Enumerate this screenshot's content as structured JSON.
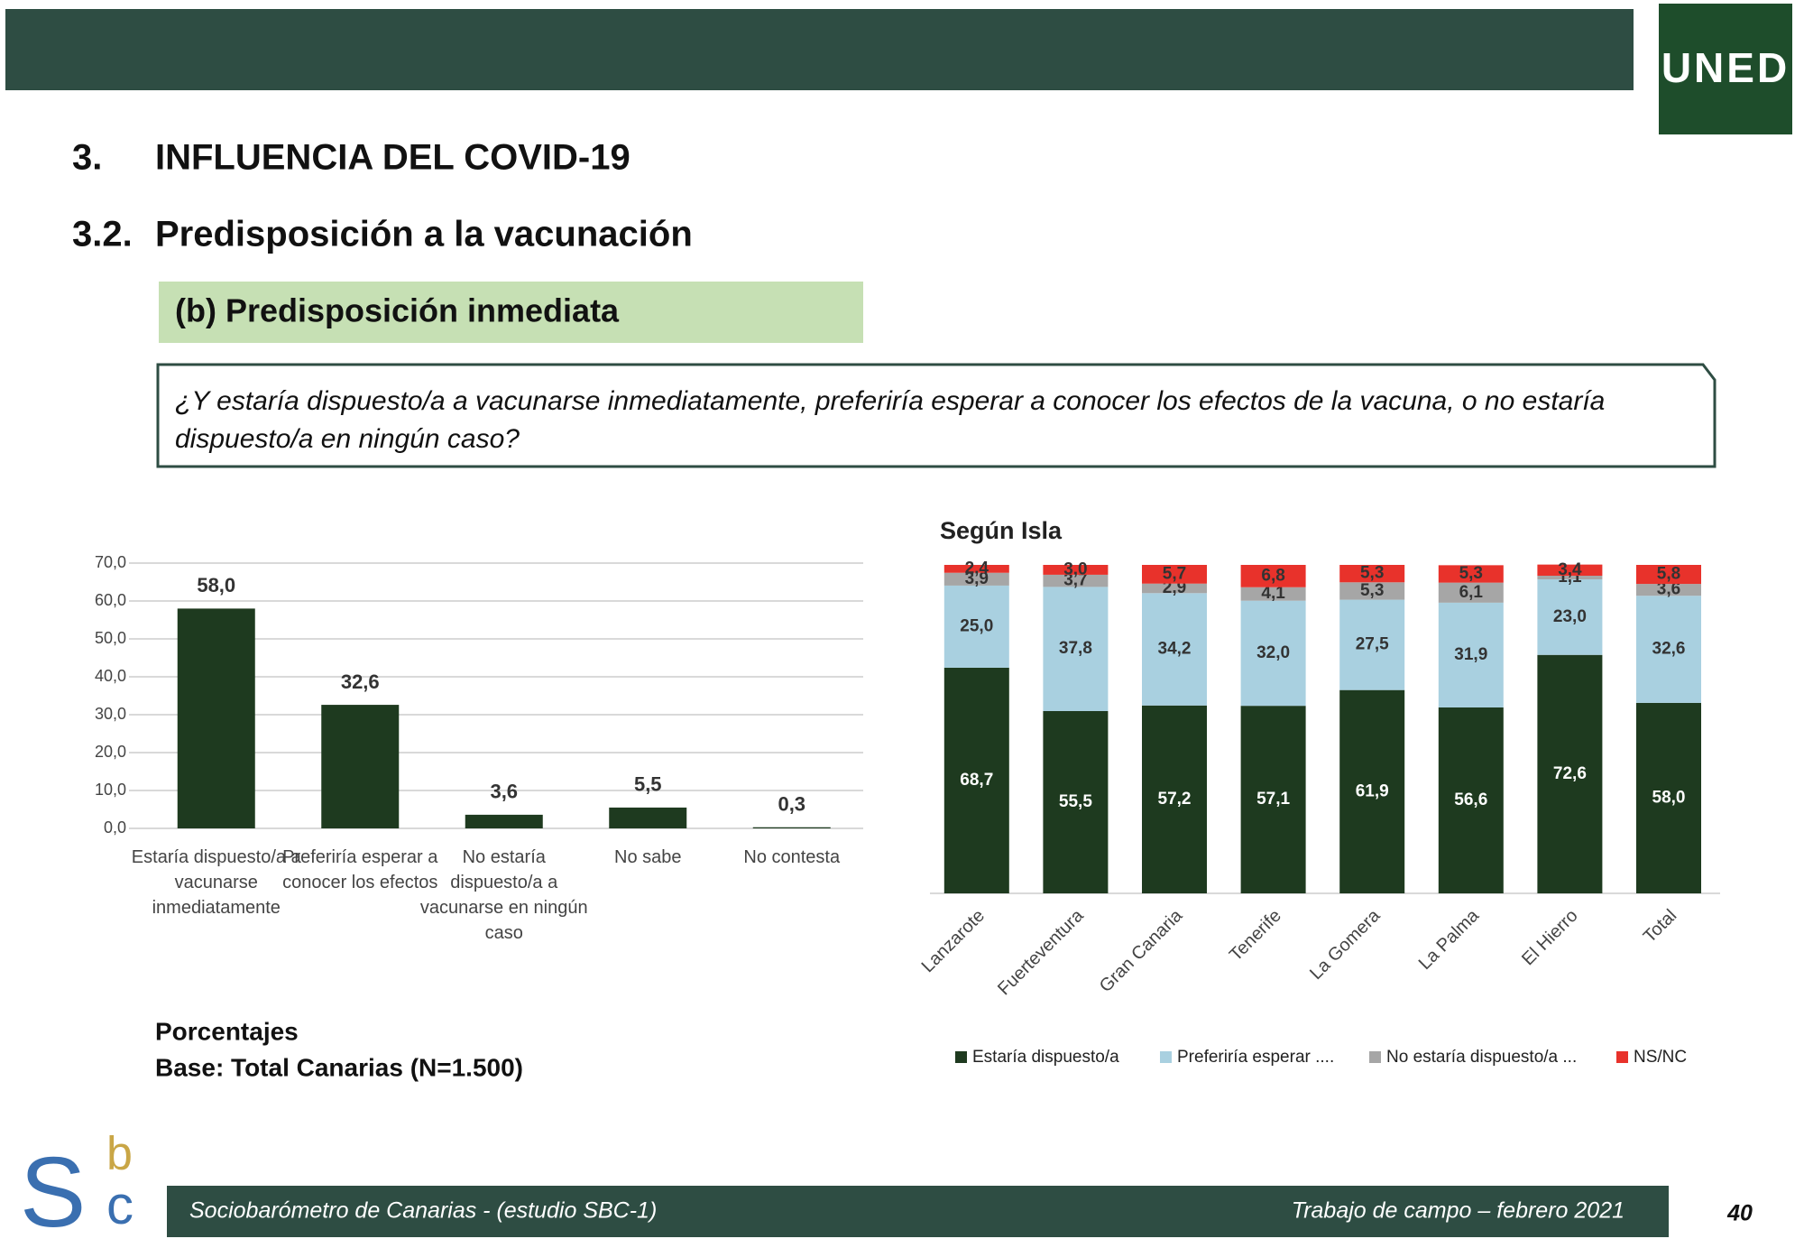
{
  "header": {
    "section_number": "3.",
    "section_title": "INFLUENCIA DEL COVID-19",
    "subsection_number": "3.2.",
    "subsection_title": "Predisposición a la vacunación",
    "panel_title": "(b) Predisposición inmediata",
    "question": "¿Y estaría dispuesto/a a vacunarse inmediatamente, preferiría esperar a conocer los efectos de la vacuna, o no estaría dispuesto/a en ningún caso?"
  },
  "logos": {
    "uned": "UNED",
    "sbc": [
      "S",
      "b",
      "c"
    ]
  },
  "chart_data": [
    {
      "type": "bar",
      "categories": [
        "Estaría dispuesto/a a vacunarse inmediatamente",
        "Preferiría esperar a conocer los efectos",
        "No estaría dispuesto/a a vacunarse en ningún caso",
        "No sabe",
        "No contesta"
      ],
      "values": [
        58.0,
        32.6,
        3.6,
        5.5,
        0.3
      ],
      "value_labels": [
        "58,0",
        "32,6",
        "3,6",
        "5,5",
        "0,3"
      ],
      "color": "#1e3a1f",
      "ylim": [
        0,
        70
      ],
      "yticks": [
        {
          "value": 0,
          "label": "0,0"
        },
        {
          "value": 10,
          "label": "10,0"
        },
        {
          "value": 20,
          "label": "20,0"
        },
        {
          "value": 30,
          "label": "30,0"
        },
        {
          "value": 40,
          "label": "40,0"
        },
        {
          "value": 50,
          "label": "50,0"
        },
        {
          "value": 60,
          "label": "60,0"
        },
        {
          "value": 70,
          "label": "70,0"
        }
      ],
      "grid": true
    },
    {
      "type": "stacked_bar",
      "title": "Según Isla",
      "categories": [
        "Lanzarote",
        "Fuerteventura",
        "Gran Canaria",
        "Tenerife",
        "La Gomera",
        "La Palma",
        "El Hierro",
        "Total"
      ],
      "series": [
        {
          "name": "Estaría dispuesto/a",
          "color": "#1e3a1f",
          "values": [
            68.7,
            55.5,
            57.2,
            57.1,
            61.9,
            56.6,
            72.6,
            58.0
          ],
          "value_labels": [
            "68,7",
            "55,5",
            "57,2",
            "57,1",
            "61,9",
            "56,6",
            "72,6",
            "58,0"
          ]
        },
        {
          "name": "Preferiría esperar ....",
          "color": "#a9d0e0",
          "values": [
            25.0,
            37.8,
            34.2,
            32.0,
            27.5,
            31.9,
            23.0,
            32.6
          ],
          "value_labels": [
            "25,0",
            "37,8",
            "34,2",
            "32,0",
            "27,5",
            "31,9",
            "23,0",
            "32,6"
          ]
        },
        {
          "name": "No estaría dispuesto/a ...",
          "color": "#a6a6a6",
          "values": [
            3.9,
            3.7,
            2.9,
            4.1,
            5.3,
            6.1,
            1.1,
            3.6
          ],
          "value_labels": [
            "3,9",
            "3,7",
            "2,9",
            "4,1",
            "5,3",
            "6,1",
            "1,1",
            "3,6"
          ]
        },
        {
          "name": "NS/NC",
          "color": "#e8322b",
          "values": [
            2.4,
            3.0,
            5.7,
            6.8,
            5.3,
            5.3,
            3.4,
            5.8
          ],
          "value_labels": [
            "2,4",
            "3,0",
            "5,7",
            "6,8",
            "5,3",
            "5,3",
            "3,4",
            "5,8"
          ]
        }
      ],
      "ylim": [
        0,
        100
      ],
      "legend": "bottom"
    }
  ],
  "notes": [
    "Porcentajes",
    "Base: Total Canarias (N=1.500)"
  ],
  "footer": {
    "left": "Sociobarómetro de Canarias -  (estudio SBC-1)",
    "right": "Trabajo de campo – febrero 2021",
    "page": "40"
  }
}
